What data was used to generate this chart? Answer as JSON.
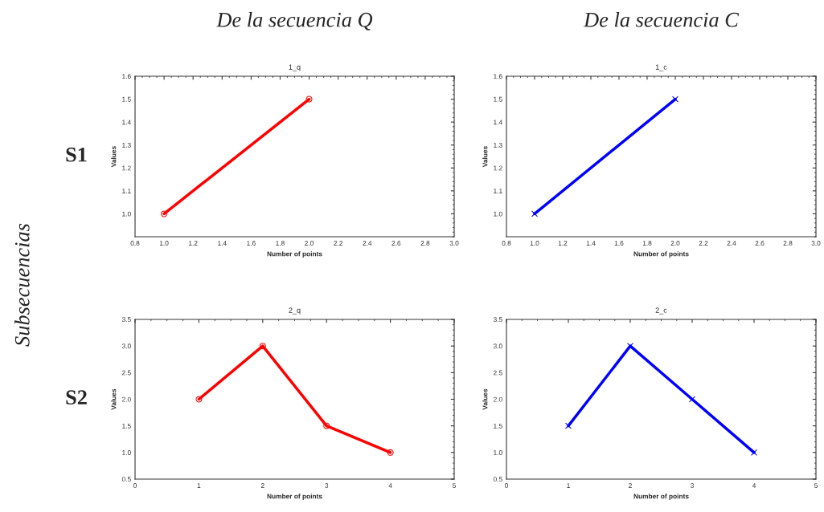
{
  "chart_data": [
    {
      "type": "line",
      "title": "1_q",
      "subtitle": "De la secuencia Q",
      "xlabel": "Number of points",
      "ylabel": "Values",
      "annotations": [
        "S1",
        "Subsecuencias"
      ],
      "marker": "circle",
      "grid": false,
      "series": [
        {
          "color": "#ff0000",
          "x": [
            1.0,
            2.0
          ],
          "values": [
            1.0,
            1.5
          ]
        }
      ],
      "xlim": [
        0.8,
        3.0
      ],
      "xticks": [
        {
          "value": 0.8,
          "label": "0.8"
        },
        {
          "value": 1.0,
          "label": "1.0"
        },
        {
          "value": 1.2,
          "label": "1.2"
        },
        {
          "value": 1.4,
          "label": "1.4"
        },
        {
          "value": 1.6,
          "label": "1.6"
        },
        {
          "value": 1.8,
          "label": "1.8"
        },
        {
          "value": 2.0,
          "label": "2.0"
        },
        {
          "value": 2.2,
          "label": "2.2"
        },
        {
          "value": 2.4,
          "label": "2.4"
        },
        {
          "value": 2.6,
          "label": "2.6"
        },
        {
          "value": 2.8,
          "label": "2.8"
        },
        {
          "value": 3.0,
          "label": "3.0"
        }
      ],
      "ylim": [
        0.9,
        1.6
      ],
      "yticks": [
        {
          "value": 1.0,
          "label": "1.0"
        },
        {
          "value": 1.1,
          "label": "1.1"
        },
        {
          "value": 1.2,
          "label": "1.2"
        },
        {
          "value": 1.3,
          "label": "1.3"
        },
        {
          "value": 1.4,
          "label": "1.4"
        },
        {
          "value": 1.5,
          "label": "1.5"
        },
        {
          "value": 1.6,
          "label": "1.6"
        }
      ]
    },
    {
      "type": "line",
      "title": "1_c",
      "subtitle": "De la secuencia C",
      "xlabel": "Number of points",
      "ylabel": "Values",
      "marker": "cross",
      "grid": false,
      "series": [
        {
          "color": "#0000ff",
          "x": [
            1.0,
            2.0
          ],
          "values": [
            1.0,
            1.5
          ]
        }
      ],
      "xlim": [
        0.8,
        3.0
      ],
      "xticks": [
        {
          "value": 0.8,
          "label": "0.8"
        },
        {
          "value": 1.0,
          "label": "1.0"
        },
        {
          "value": 1.2,
          "label": "1.2"
        },
        {
          "value": 1.4,
          "label": "1.4"
        },
        {
          "value": 1.6,
          "label": "1.6"
        },
        {
          "value": 1.8,
          "label": "1.8"
        },
        {
          "value": 2.0,
          "label": "2.0"
        },
        {
          "value": 2.2,
          "label": "2.2"
        },
        {
          "value": 2.4,
          "label": "2.4"
        },
        {
          "value": 2.6,
          "label": "2.6"
        },
        {
          "value": 2.8,
          "label": "2.8"
        },
        {
          "value": 3.0,
          "label": "3.0"
        }
      ],
      "ylim": [
        0.9,
        1.6
      ],
      "yticks": [
        {
          "value": 1.0,
          "label": "1.0"
        },
        {
          "value": 1.1,
          "label": "1.1"
        },
        {
          "value": 1.2,
          "label": "1.2"
        },
        {
          "value": 1.3,
          "label": "1.3"
        },
        {
          "value": 1.4,
          "label": "1.4"
        },
        {
          "value": 1.5,
          "label": "1.5"
        },
        {
          "value": 1.6,
          "label": "1.6"
        }
      ]
    },
    {
      "type": "line",
      "title": "2_q",
      "xlabel": "Number of points",
      "ylabel": "Values",
      "annotations": [
        "S2"
      ],
      "marker": "circle",
      "grid": false,
      "series": [
        {
          "color": "#ff0000",
          "x": [
            1,
            2,
            3,
            4
          ],
          "values": [
            2.0,
            3.0,
            1.5,
            1.0
          ]
        }
      ],
      "xlim": [
        0,
        5
      ],
      "xticks": [
        0,
        1,
        2,
        3,
        4,
        5
      ],
      "ylim": [
        0.5,
        3.5
      ],
      "yticks": [
        {
          "value": 0.5,
          "label": "0.5"
        },
        {
          "value": 1.0,
          "label": "1.0"
        },
        {
          "value": 1.5,
          "label": "1.5"
        },
        {
          "value": 2.0,
          "label": "2.0"
        },
        {
          "value": 2.5,
          "label": "2.5"
        },
        {
          "value": 3.0,
          "label": "3.0"
        },
        {
          "value": 3.5,
          "label": "3.5"
        }
      ]
    },
    {
      "type": "line",
      "title": "2_c",
      "xlabel": "Number of points",
      "ylabel": "Values",
      "marker": "cross",
      "grid": false,
      "series": [
        {
          "color": "#0000ff",
          "x": [
            1,
            2,
            3,
            4
          ],
          "values": [
            1.5,
            3.0,
            2.0,
            1.0
          ]
        }
      ],
      "xlim": [
        0,
        5
      ],
      "xticks": [
        0,
        1,
        2,
        3,
        4,
        5
      ],
      "ylim": [
        0.5,
        3.5
      ],
      "yticks": [
        {
          "value": 0.5,
          "label": "0.5"
        },
        {
          "value": 1.0,
          "label": "1.0"
        },
        {
          "value": 1.5,
          "label": "1.5"
        },
        {
          "value": 2.0,
          "label": "2.0"
        },
        {
          "value": 2.5,
          "label": "2.5"
        },
        {
          "value": 3.0,
          "label": "3.0"
        },
        {
          "value": 3.5,
          "label": "3.5"
        }
      ]
    }
  ]
}
